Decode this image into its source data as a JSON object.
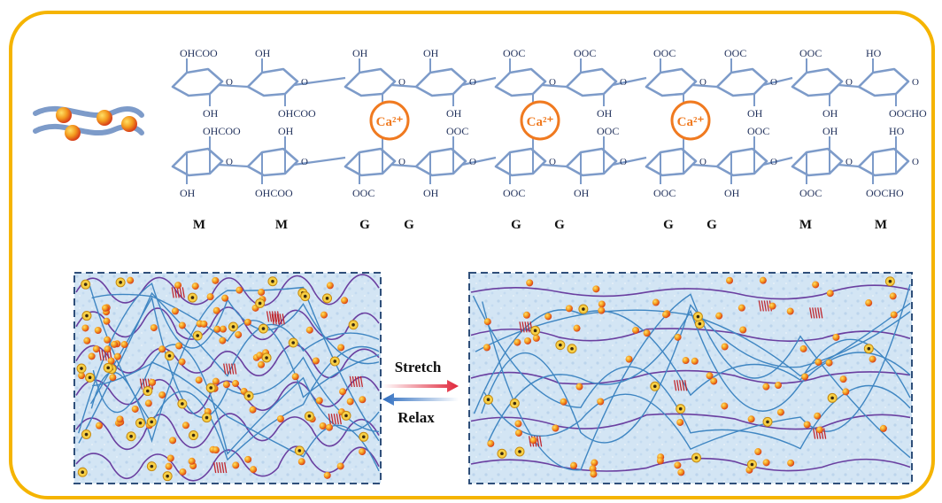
{
  "colors": {
    "frame": "#f5b400",
    "sugar": "#7d9bc9",
    "sugar_text": "#1f2f5a",
    "calcium": "#f07a20",
    "network_blue": "#3f86c2",
    "network_purple": "#6a3fa0",
    "hbond": "#c0282f",
    "panel_bg": "#cfe2f3",
    "panel_border": "#2f4f7a",
    "stretch_arrow": "#e0263a",
    "relax_arrow": "#2f6ec0"
  },
  "chain": {
    "top_labels": [
      "OHCOO",
      "OH",
      "OH",
      "OHCOO",
      "OH",
      "OOC",
      "OH",
      "OH",
      "OOC",
      "OH",
      "OOC",
      "OH",
      "OOC",
      "OH",
      "OOC",
      "OH",
      "OOC",
      "OH",
      "HO",
      "OOCHO",
      "OOCHO",
      "HO"
    ],
    "bottom_labels": [
      "OH",
      "OHCOO",
      "OHCOO",
      "OH",
      "OOC",
      "OH",
      "OH",
      "OOC",
      "OOC",
      "OH",
      "OH",
      "OOC",
      "OOC",
      "OH",
      "OH",
      "OOC",
      "OOC",
      "OH",
      "OOCHO",
      "HO",
      "HO",
      "OOCHO"
    ],
    "calcium_ions": [
      "Ca²⁺",
      "Ca²⁺",
      "Ca²⁺"
    ],
    "residue_labels": [
      "M",
      "M",
      "G",
      "G",
      "G",
      "G",
      "G",
      "G",
      "M",
      "M"
    ]
  },
  "arrows": {
    "stretch_label": "Stretch",
    "relax_label": "Relax"
  }
}
